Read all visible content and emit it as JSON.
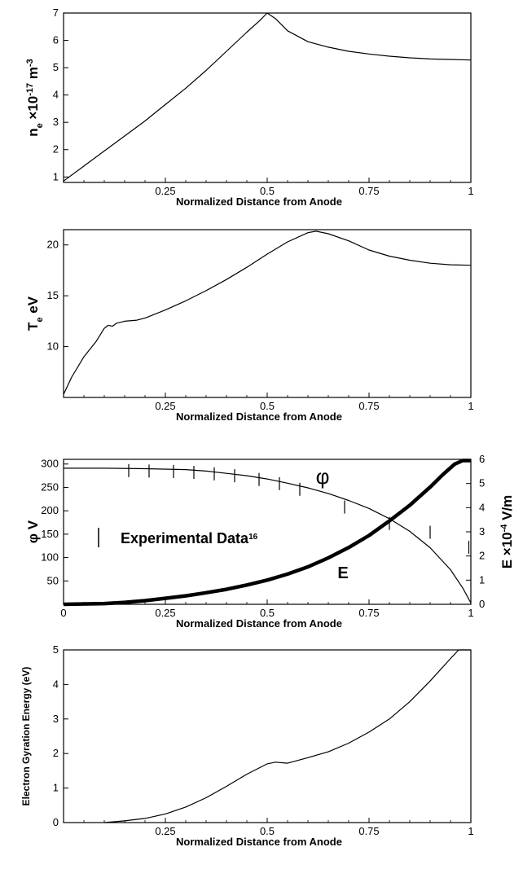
{
  "colors": {
    "line": "#000000",
    "background": "#ffffff"
  },
  "chart_data": [
    {
      "type": "line",
      "title": "",
      "xlabel": "Normalized Distance from Anode",
      "ylabel": {
        "base": "n",
        "sub": "e",
        "mid": " ×10",
        "sup": "-17",
        "unit": " m",
        "unitsup": "-3"
      },
      "xlim": [
        0,
        1
      ],
      "ylim": [
        0.8,
        7
      ],
      "xticks": [
        "0.25",
        "0.5",
        "0.75",
        "1"
      ],
      "yticks": [
        "1",
        "2",
        "3",
        "4",
        "5",
        "6",
        "7"
      ],
      "series": [
        {
          "x": [
            0,
            0.05,
            0.1,
            0.15,
            0.2,
            0.25,
            0.3,
            0.35,
            0.4,
            0.45,
            0.48,
            0.5,
            0.52,
            0.55,
            0.6,
            0.65,
            0.7,
            0.75,
            0.8,
            0.85,
            0.9,
            0.95,
            1.0
          ],
          "y": [
            0.85,
            1.4,
            1.95,
            2.5,
            3.05,
            3.65,
            4.25,
            4.9,
            5.6,
            6.3,
            6.7,
            7.0,
            6.8,
            6.35,
            5.95,
            5.75,
            5.6,
            5.5,
            5.42,
            5.36,
            5.32,
            5.3,
            5.28
          ]
        }
      ]
    },
    {
      "type": "line",
      "title": "",
      "xlabel": "Normalized Distance from Anode",
      "ylabel": {
        "base": "T",
        "sub": "e",
        "mid": " eV"
      },
      "xlim": [
        0,
        1
      ],
      "ylim": [
        5,
        21.5
      ],
      "xticks": [
        "0.25",
        "0.5",
        "0.75",
        "1"
      ],
      "yticks": [
        "10",
        "15",
        "20"
      ],
      "series": [
        {
          "x": [
            0,
            0.02,
            0.05,
            0.08,
            0.1,
            0.11,
            0.12,
            0.13,
            0.15,
            0.18,
            0.2,
            0.25,
            0.3,
            0.35,
            0.4,
            0.45,
            0.5,
            0.55,
            0.6,
            0.62,
            0.65,
            0.7,
            0.75,
            0.8,
            0.85,
            0.9,
            0.95,
            1.0
          ],
          "y": [
            5.3,
            7.0,
            9.0,
            10.5,
            11.8,
            12.1,
            12.0,
            12.3,
            12.5,
            12.6,
            12.8,
            13.6,
            14.5,
            15.5,
            16.6,
            17.8,
            19.1,
            20.3,
            21.2,
            21.35,
            21.1,
            20.4,
            19.5,
            18.9,
            18.5,
            18.2,
            18.05,
            18.0
          ]
        }
      ]
    },
    {
      "type": "line",
      "title": "",
      "xlabel": "Normalized Distance from Anode",
      "ylabel": {
        "base": "φ V"
      },
      "y2label": {
        "base": "E ×10",
        "sup": "-4",
        "unit": " V/m"
      },
      "xlim": [
        0,
        1
      ],
      "ylim": [
        0,
        310
      ],
      "y2lim": [
        0,
        6
      ],
      "xticks": [
        "0",
        "0.25",
        "0.5",
        "0.75",
        "1"
      ],
      "yticks": [
        "50",
        "100",
        "150",
        "200",
        "250",
        "300"
      ],
      "y2ticks": [
        "0",
        "1",
        "2",
        "3",
        "4",
        "5",
        "6"
      ],
      "annotations": {
        "phi": "φ",
        "E": "E"
      },
      "legend": {
        "text": "Experimental Data",
        "sup": "16"
      },
      "series": [
        {
          "name": "φ",
          "axis": "left",
          "x": [
            0,
            0.1,
            0.2,
            0.3,
            0.35,
            0.4,
            0.45,
            0.5,
            0.55,
            0.6,
            0.65,
            0.7,
            0.75,
            0.8,
            0.85,
            0.9,
            0.95,
            0.98,
            1.0
          ],
          "y": [
            291,
            291,
            290,
            288,
            285,
            280,
            275,
            268,
            259,
            249,
            237,
            222,
            205,
            183,
            156,
            121,
            74,
            35,
            3
          ]
        },
        {
          "name": "E",
          "axis": "right",
          "x": [
            0,
            0.1,
            0.15,
            0.2,
            0.25,
            0.3,
            0.35,
            0.4,
            0.45,
            0.5,
            0.55,
            0.6,
            0.65,
            0.7,
            0.75,
            0.8,
            0.85,
            0.9,
            0.93,
            0.96,
            0.98,
            1.0
          ],
          "y": [
            0.0,
            0.03,
            0.08,
            0.15,
            0.25,
            0.35,
            0.48,
            0.62,
            0.8,
            1.0,
            1.25,
            1.55,
            1.92,
            2.35,
            2.85,
            3.45,
            4.1,
            4.85,
            5.35,
            5.8,
            5.95,
            5.95
          ]
        },
        {
          "name": "Experimental Data",
          "axis": "left",
          "kind": "marks",
          "x": [
            0.16,
            0.21,
            0.27,
            0.32,
            0.37,
            0.42,
            0.48,
            0.53,
            0.58,
            0.69,
            0.8,
            0.9,
            0.995
          ],
          "y": [
            286,
            285,
            284,
            282,
            279,
            275,
            267,
            258,
            246,
            208,
            173,
            154,
            122
          ]
        }
      ]
    },
    {
      "type": "line",
      "title": "",
      "xlabel": "Normalized Distance from Anode",
      "ylabel": {
        "base": "Electron Gyration Energy (eV)"
      },
      "xlim": [
        0,
        1
      ],
      "ylim": [
        0,
        5
      ],
      "xticks": [
        "0.25",
        "0.5",
        "0.75",
        "1"
      ],
      "yticks": [
        "0",
        "1",
        "2",
        "3",
        "4",
        "5"
      ],
      "series": [
        {
          "x": [
            0.1,
            0.15,
            0.2,
            0.25,
            0.3,
            0.35,
            0.4,
            0.45,
            0.5,
            0.52,
            0.55,
            0.6,
            0.65,
            0.7,
            0.75,
            0.8,
            0.85,
            0.9,
            0.95,
            0.97,
            1.0
          ],
          "y": [
            0.0,
            0.05,
            0.12,
            0.25,
            0.45,
            0.72,
            1.05,
            1.4,
            1.7,
            1.75,
            1.72,
            1.88,
            2.05,
            2.3,
            2.62,
            3.0,
            3.5,
            4.1,
            4.75,
            5.0,
            5.0
          ]
        }
      ]
    }
  ]
}
